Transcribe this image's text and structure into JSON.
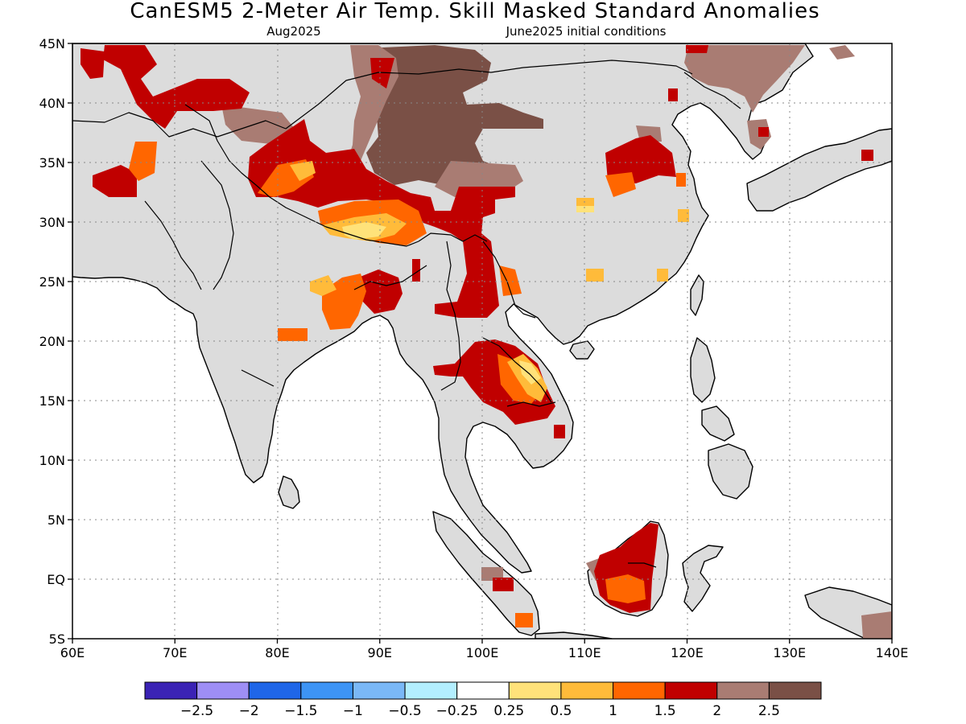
{
  "title": "CanESM5 2-Meter Air Temp. Skill Masked Standard Anomalies",
  "subtitle_left": "Aug2025",
  "subtitle_right": "June2025 initial conditions",
  "map": {
    "lon_range": [
      60,
      140
    ],
    "lat_range": [
      -5,
      45
    ],
    "grid": "dotted",
    "lon_ticks": [
      {
        "value": 60,
        "label": "60E"
      },
      {
        "value": 70,
        "label": "70E"
      },
      {
        "value": 80,
        "label": "80E"
      },
      {
        "value": 90,
        "label": "90E"
      },
      {
        "value": 100,
        "label": "100E"
      },
      {
        "value": 110,
        "label": "110E"
      },
      {
        "value": 120,
        "label": "120E"
      },
      {
        "value": 130,
        "label": "130E"
      },
      {
        "value": 140,
        "label": "140E"
      }
    ],
    "lat_ticks": [
      {
        "value": 45,
        "label": "45N"
      },
      {
        "value": 40,
        "label": "40N"
      },
      {
        "value": 35,
        "label": "35N"
      },
      {
        "value": 30,
        "label": "30N"
      },
      {
        "value": 25,
        "label": "25N"
      },
      {
        "value": 20,
        "label": "20N"
      },
      {
        "value": 15,
        "label": "15N"
      },
      {
        "value": 10,
        "label": "10N"
      },
      {
        "value": 5,
        "label": "5N"
      },
      {
        "value": 0,
        "label": "EQ"
      },
      {
        "value": -5,
        "label": "5S"
      }
    ],
    "land_color": "#dcdcdc",
    "coast_color": "#000000"
  },
  "colorbar": {
    "colors": [
      "#3b23b5",
      "#9e8ef5",
      "#1f66e8",
      "#3d94f5",
      "#7ab8f7",
      "#b3efff",
      "#ffffff",
      "#ffe27a",
      "#ffbb3a",
      "#ff6600",
      "#c00000",
      "#a97c73",
      "#7a5046"
    ],
    "labels": [
      "−2.5",
      "−2",
      "−1.5",
      "−1",
      "−0.5",
      "−0.25",
      "0.25",
      "0.5",
      "1",
      "1.5",
      "2",
      "2.5"
    ]
  },
  "anomaly_regions": [
    {
      "category": "2.5",
      "color": "#7a5046",
      "where": "Tibetan Plateau / Qinghai"
    },
    {
      "category": "2",
      "color": "#a97c73",
      "where": "Mongolia, NE China, Korea"
    },
    {
      "category": "1.5",
      "color": "#c00000",
      "where": "Tibet, Yunnan, Myanmar, Thailand, Laos, Borneo"
    },
    {
      "category": "1",
      "color": "#ff6600",
      "where": "Bangladesh, W Tibet, Borneo"
    },
    {
      "category": "0.5",
      "color": "#ffbb3a",
      "where": "S Tibet, Laos, E China"
    },
    {
      "category": "0.25",
      "color": "#ffe27a",
      "where": "Laos, S Tibet"
    }
  ]
}
